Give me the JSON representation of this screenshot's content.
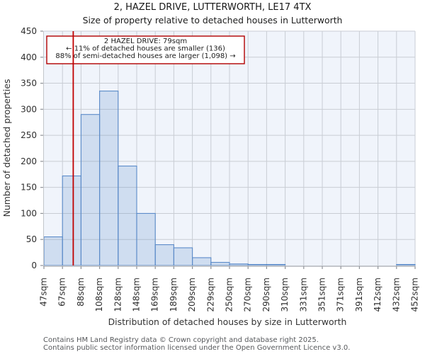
{
  "page": {
    "title": "2, HAZEL DRIVE, LUTTERWORTH, LE17 4TX",
    "subtitle": "Size of property relative to detached houses in Lutterworth"
  },
  "chart_data": {
    "type": "bar",
    "title": "2, HAZEL DRIVE, LUTTERWORTH, LE17 4TX",
    "subtitle": "Size of property relative to detached houses in Lutterworth",
    "xlabel": "Distribution of detached houses by size in Lutterworth",
    "ylabel": "Number of detached properties",
    "categories": [
      "47sqm",
      "67sqm",
      "88sqm",
      "108sqm",
      "128sqm",
      "148sqm",
      "169sqm",
      "189sqm",
      "209sqm",
      "229sqm",
      "250sqm",
      "270sqm",
      "290sqm",
      "310sqm",
      "331sqm",
      "351sqm",
      "371sqm",
      "391sqm",
      "412sqm",
      "432sqm",
      "452sqm"
    ],
    "bin_edges_sqm": [
      47,
      67,
      88,
      108,
      128,
      148,
      169,
      189,
      209,
      229,
      250,
      270,
      290,
      310,
      331,
      351,
      371,
      391,
      412,
      432,
      452
    ],
    "values": [
      55,
      172,
      290,
      335,
      191,
      100,
      40,
      34,
      15,
      6,
      3,
      2,
      2,
      0,
      0,
      0,
      0,
      0,
      0,
      2
    ],
    "ylim": [
      0,
      450
    ],
    "yticks": [
      0,
      50,
      100,
      150,
      200,
      250,
      300,
      350,
      400,
      450
    ],
    "grid": true,
    "legend": false,
    "marker": {
      "sqm": 79,
      "color": "#c00000"
    },
    "annotation": {
      "line1": "2 HAZEL DRIVE: 79sqm",
      "line2": "← 11% of detached houses are smaller (136)",
      "line3": "88% of semi-detached houses are larger (1,098) →"
    },
    "colors": {
      "bar_edge": "#5b8bc9",
      "bar_fill_base": "#5b8bc9",
      "bar_fill_opacity": 0.22,
      "plot_bg": "#f0f4fb",
      "grid": "#c9cdd4",
      "marker_line": "#c00000",
      "annotation_border": "#b20000",
      "spine": "#c3c6cb",
      "tick_mark": "#8f9399"
    }
  },
  "footer": {
    "line1": "Contains HM Land Registry data © Crown copyright and database right 2025.",
    "line2": "Contains public sector information licensed under the Open Government Licence v3.0."
  }
}
